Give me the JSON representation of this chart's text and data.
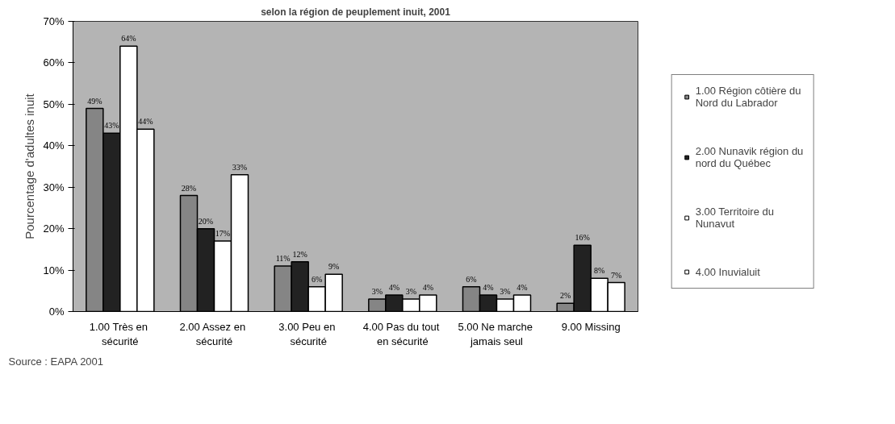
{
  "chart_data": {
    "type": "bar",
    "title": "selon la région de peuplement inuit, 2001",
    "ylabel": "Pourcentage d'adultes inuit",
    "categories": [
      "1.00  Très en sécurité",
      "2.00  Assez en sécurité",
      "3.00  Peu en sécurité",
      "4.00  Pas du tout en sécurité",
      "5.00  Ne marche jamais seul",
      "9.00 Missing"
    ],
    "series": [
      {
        "name": "1.00 Région côtière du Nord du Labrador",
        "color": "#858585",
        "values": [
          49,
          28,
          11,
          3,
          6,
          2
        ],
        "value_labels": [
          "49%",
          "28%",
          "11%",
          "3%",
          "6%",
          "2%"
        ]
      },
      {
        "name": "2.00 Nunavik région du nord du Québec",
        "color": "#222222",
        "values": [
          43,
          20,
          12,
          4,
          4,
          16
        ],
        "value_labels": [
          "43%",
          "20%",
          "12%",
          "4%",
          "4%",
          "16%"
        ]
      },
      {
        "name": "3.00 Territoire du Nunavut",
        "color": "#ffffff",
        "values": [
          64,
          17,
          6,
          3,
          3,
          8
        ],
        "value_labels": [
          "64%",
          "17%",
          "6%",
          "3%",
          "3%",
          "8%"
        ]
      },
      {
        "name": "4.00 Inuvialuit",
        "color": "#ffffff",
        "values": [
          44,
          33,
          9,
          4,
          4,
          7
        ],
        "value_labels": [
          "44%",
          "33%",
          "9%",
          "4%",
          "4%",
          "7%"
        ]
      }
    ],
    "ylim": [
      0,
      70
    ],
    "yticks": [
      {
        "value": 0,
        "label": "0%"
      },
      {
        "value": 10,
        "label": "10%"
      },
      {
        "value": 20,
        "label": "20%"
      },
      {
        "value": 30,
        "label": "30%"
      },
      {
        "value": 40,
        "label": "40%"
      },
      {
        "value": 50,
        "label": "50%"
      },
      {
        "value": 60,
        "label": "60%"
      },
      {
        "value": 70,
        "label": "70%"
      }
    ],
    "grid": false,
    "data_labels": true,
    "legend": "right",
    "annotations": [
      "Source : EAPA 2001"
    ]
  }
}
